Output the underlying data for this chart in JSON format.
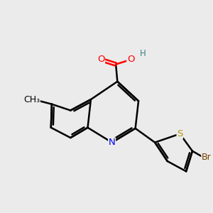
{
  "background_color": "#ebebeb",
  "bond_color": "#000000",
  "bond_lw": 1.8,
  "atom_colors": {
    "O": "#ff0000",
    "N": "#0000ee",
    "S": "#b8960a",
    "Br": "#7a4000",
    "H": "#3a8080",
    "C": "#000000"
  },
  "font_size": 9.5,
  "font_size_small": 8.5
}
